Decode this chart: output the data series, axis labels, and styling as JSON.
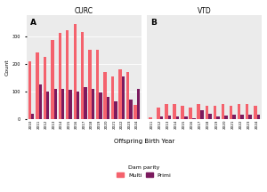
{
  "curc_years": [
    "2010",
    "2011",
    "2012",
    "2013",
    "2014",
    "2015",
    "2016",
    "2017",
    "2018",
    "2019",
    "2020",
    "2021",
    "2022",
    "2023",
    "2024"
  ],
  "curc_multi": [
    210,
    240,
    225,
    285,
    310,
    320,
    345,
    315,
    250,
    250,
    170,
    155,
    180,
    170,
    50
  ],
  "curc_primi": [
    20,
    125,
    100,
    110,
    110,
    105,
    100,
    115,
    110,
    95,
    80,
    65,
    155,
    70,
    110
  ],
  "vtd_years": [
    "2011",
    "2012",
    "2013",
    "2014",
    "2015",
    "2016",
    "2017",
    "2018",
    "2019",
    "2020",
    "2021",
    "2022",
    "2023",
    "2024"
  ],
  "vtd_multi": [
    5,
    40,
    55,
    55,
    48,
    40,
    55,
    48,
    48,
    55,
    48,
    55,
    55,
    48
  ],
  "vtd_primi": [
    0,
    8,
    12,
    8,
    8,
    3,
    32,
    18,
    8,
    12,
    16,
    16,
    16,
    16
  ],
  "color_multi": "#f4626d",
  "color_primi": "#7b1a5e",
  "panel_bg": "#ebebeb",
  "title_curc": "CURC",
  "title_vtd": "VTD",
  "label_a": "A",
  "label_b": "B",
  "xlabel": "Offspring Birth Year",
  "ylabel": "Count",
  "legend_title": "Dam parity",
  "legend_multi": "Multi",
  "legend_primi": "Primi",
  "curc_ylim": [
    0,
    375
  ],
  "vtd_ylim": [
    0,
    375
  ],
  "curc_yticks": [
    0,
    100,
    200,
    300
  ],
  "vtd_yticks": []
}
